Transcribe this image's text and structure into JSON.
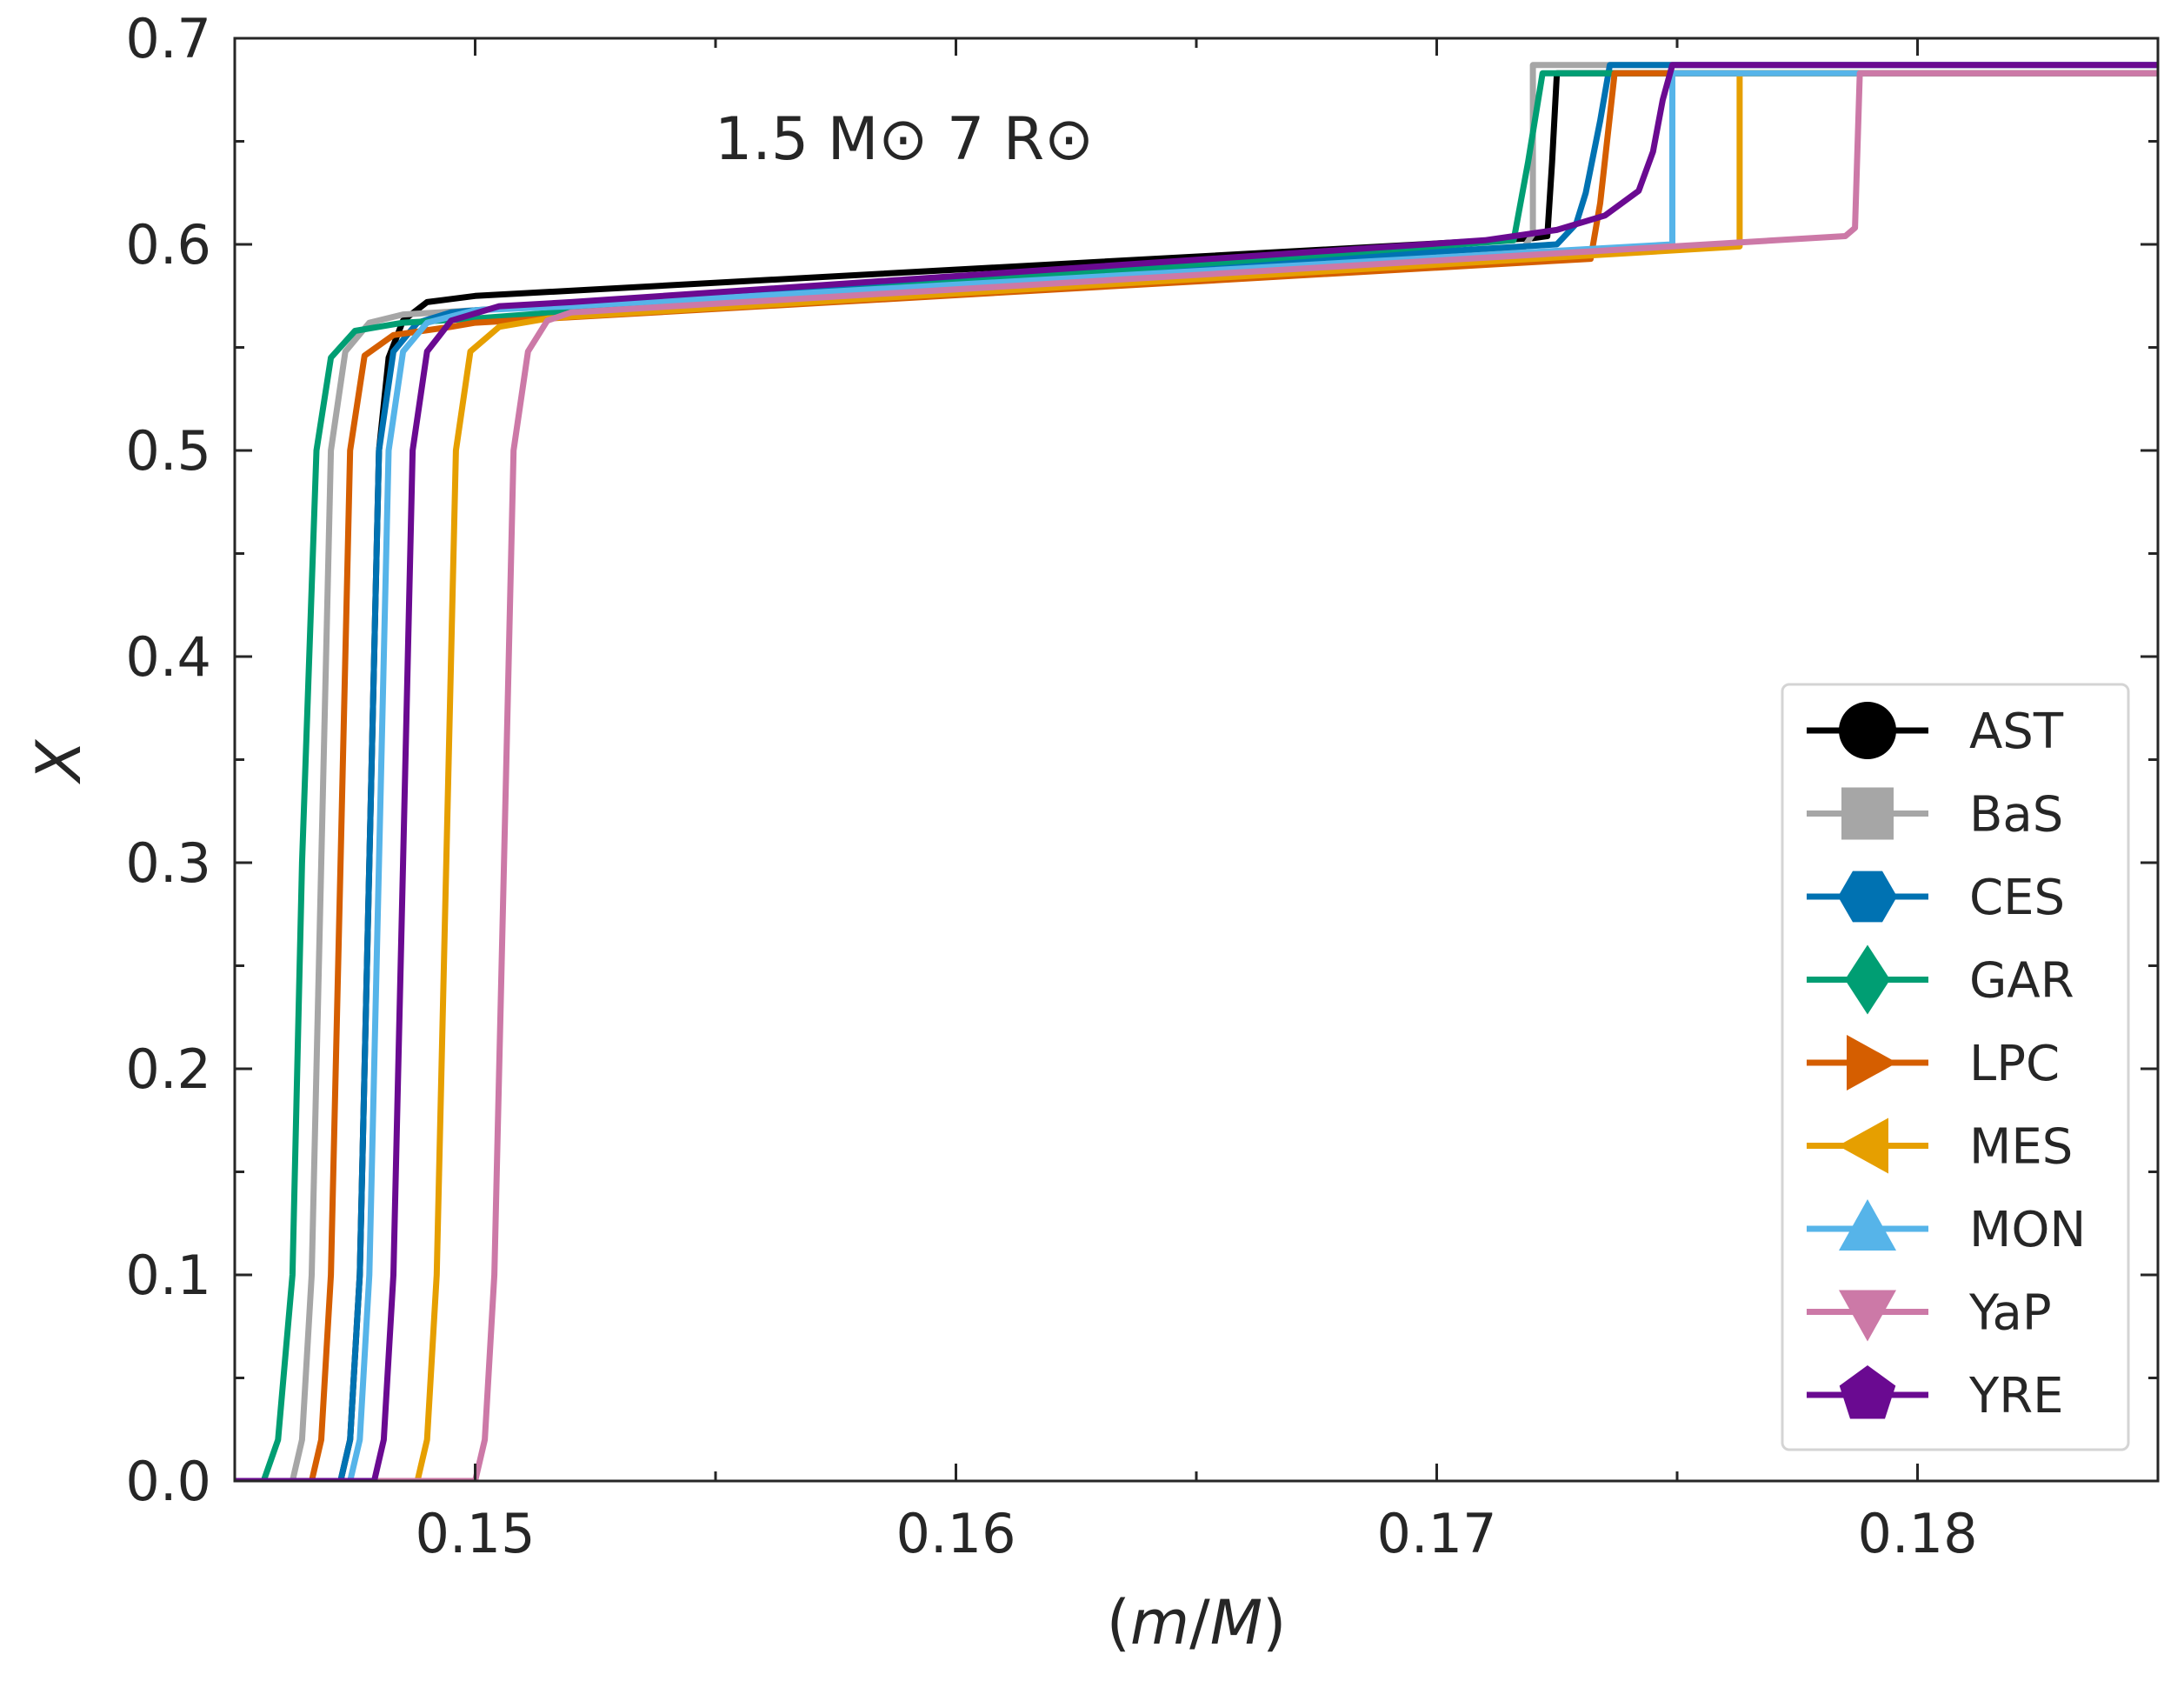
{
  "chart_data": {
    "type": "line",
    "annotation": "1.5 M⊙ 7 R⊙",
    "xlabel_parts": [
      "(",
      "m",
      "/",
      "M",
      ")"
    ],
    "ylabel": "X",
    "xlim": [
      0.145,
      0.185
    ],
    "ylim": [
      0.0,
      0.7
    ],
    "xticks": [
      0.15,
      0.16,
      0.17,
      0.18
    ],
    "xtick_labels": [
      "0.15",
      "0.16",
      "0.17",
      "0.18"
    ],
    "yticks": [
      0.0,
      0.1,
      0.2,
      0.3,
      0.4,
      0.5,
      0.6,
      0.7
    ],
    "ytick_labels": [
      "0.0",
      "0.1",
      "0.2",
      "0.3",
      "0.4",
      "0.5",
      "0.6",
      "0.7"
    ],
    "legend_location": "lower-right",
    "series": [
      {
        "name": "AST",
        "color": "#000000",
        "marker": "circle",
        "points": [
          [
            0.145,
            0.0
          ],
          [
            0.1472,
            0.0
          ],
          [
            0.1474,
            0.02
          ],
          [
            0.1476,
            0.1
          ],
          [
            0.1478,
            0.3
          ],
          [
            0.148,
            0.5
          ],
          [
            0.1482,
            0.545
          ],
          [
            0.1485,
            0.563
          ],
          [
            0.149,
            0.572
          ],
          [
            0.15,
            0.575
          ],
          [
            0.172,
            0.603
          ],
          [
            0.1723,
            0.604
          ],
          [
            0.1724,
            0.64
          ],
          [
            0.1725,
            0.683
          ],
          [
            0.185,
            0.683
          ]
        ]
      },
      {
        "name": "BaS",
        "color": "#a6a6a6",
        "marker": "square",
        "points": [
          [
            0.145,
            0.0
          ],
          [
            0.1462,
            0.0
          ],
          [
            0.1464,
            0.02
          ],
          [
            0.1466,
            0.1
          ],
          [
            0.1468,
            0.3
          ],
          [
            0.147,
            0.5
          ],
          [
            0.1473,
            0.548
          ],
          [
            0.1478,
            0.562
          ],
          [
            0.1485,
            0.566
          ],
          [
            0.15,
            0.568
          ],
          [
            0.1718,
            0.598
          ],
          [
            0.172,
            0.605
          ],
          [
            0.172,
            0.687
          ],
          [
            0.185,
            0.687
          ]
        ]
      },
      {
        "name": "CES",
        "color": "#0072b2",
        "marker": "hexagon",
        "points": [
          [
            0.145,
            0.0
          ],
          [
            0.1472,
            0.0
          ],
          [
            0.1474,
            0.02
          ],
          [
            0.1476,
            0.1
          ],
          [
            0.1478,
            0.3
          ],
          [
            0.148,
            0.5
          ],
          [
            0.1483,
            0.548
          ],
          [
            0.1488,
            0.562
          ],
          [
            0.1495,
            0.567
          ],
          [
            0.15,
            0.568
          ],
          [
            0.1725,
            0.6
          ],
          [
            0.1729,
            0.61
          ],
          [
            0.1731,
            0.625
          ],
          [
            0.1734,
            0.66
          ],
          [
            0.1736,
            0.687
          ],
          [
            0.185,
            0.687
          ]
        ]
      },
      {
        "name": "GAR",
        "color": "#009e73",
        "marker": "diamond",
        "points": [
          [
            0.145,
            0.0
          ],
          [
            0.1456,
            0.0
          ],
          [
            0.1459,
            0.02
          ],
          [
            0.1462,
            0.1
          ],
          [
            0.1464,
            0.3
          ],
          [
            0.1467,
            0.5
          ],
          [
            0.147,
            0.545
          ],
          [
            0.1475,
            0.558
          ],
          [
            0.1485,
            0.562
          ],
          [
            0.15,
            0.564
          ],
          [
            0.1716,
            0.602
          ],
          [
            0.1719,
            0.64
          ],
          [
            0.1722,
            0.683
          ],
          [
            0.185,
            0.683
          ]
        ]
      },
      {
        "name": "LPC",
        "color": "#d55e00",
        "marker": "triangle-right",
        "points": [
          [
            0.145,
            0.0
          ],
          [
            0.1466,
            0.0
          ],
          [
            0.1468,
            0.02
          ],
          [
            0.147,
            0.1
          ],
          [
            0.1472,
            0.3
          ],
          [
            0.1474,
            0.5
          ],
          [
            0.1477,
            0.546
          ],
          [
            0.1483,
            0.556
          ],
          [
            0.1495,
            0.56
          ],
          [
            0.15,
            0.562
          ],
          [
            0.1732,
            0.593
          ],
          [
            0.1734,
            0.62
          ],
          [
            0.1737,
            0.683
          ],
          [
            0.185,
            0.683
          ]
        ]
      },
      {
        "name": "MES",
        "color": "#e69f00",
        "marker": "triangle-left",
        "points": [
          [
            0.145,
            0.0
          ],
          [
            0.1488,
            0.0
          ],
          [
            0.149,
            0.02
          ],
          [
            0.1492,
            0.1
          ],
          [
            0.1494,
            0.3
          ],
          [
            0.1496,
            0.5
          ],
          [
            0.1499,
            0.548
          ],
          [
            0.1505,
            0.56
          ],
          [
            0.1515,
            0.564
          ],
          [
            0.152,
            0.565
          ],
          [
            0.1763,
            0.599
          ],
          [
            0.1763,
            0.683
          ],
          [
            0.185,
            0.683
          ]
        ]
      },
      {
        "name": "MON",
        "color": "#56b4e9",
        "marker": "triangle-up",
        "points": [
          [
            0.145,
            0.0
          ],
          [
            0.1474,
            0.0
          ],
          [
            0.1476,
            0.02
          ],
          [
            0.1478,
            0.1
          ],
          [
            0.148,
            0.3
          ],
          [
            0.1482,
            0.5
          ],
          [
            0.1485,
            0.548
          ],
          [
            0.149,
            0.562
          ],
          [
            0.15,
            0.568
          ],
          [
            0.152,
            0.57
          ],
          [
            0.1749,
            0.6
          ],
          [
            0.1749,
            0.683
          ],
          [
            0.185,
            0.683
          ]
        ]
      },
      {
        "name": "YaP",
        "color": "#cc79a7",
        "marker": "triangle-down",
        "points": [
          [
            0.145,
            0.0
          ],
          [
            0.15,
            0.0
          ],
          [
            0.1502,
            0.02
          ],
          [
            0.1504,
            0.1
          ],
          [
            0.1506,
            0.3
          ],
          [
            0.1508,
            0.5
          ],
          [
            0.1511,
            0.548
          ],
          [
            0.1515,
            0.563
          ],
          [
            0.152,
            0.567
          ],
          [
            0.1785,
            0.604
          ],
          [
            0.1787,
            0.608
          ],
          [
            0.1788,
            0.683
          ],
          [
            0.185,
            0.683
          ]
        ]
      },
      {
        "name": "YRE",
        "color": "#6a0a91",
        "marker": "pentagon",
        "points": [
          [
            0.145,
            0.0
          ],
          [
            0.1479,
            0.0
          ],
          [
            0.1481,
            0.02
          ],
          [
            0.1483,
            0.1
          ],
          [
            0.1485,
            0.3
          ],
          [
            0.1487,
            0.5
          ],
          [
            0.149,
            0.548
          ],
          [
            0.1495,
            0.563
          ],
          [
            0.1505,
            0.57
          ],
          [
            0.152,
            0.572
          ],
          [
            0.171,
            0.602
          ],
          [
            0.1725,
            0.607
          ],
          [
            0.1735,
            0.614
          ],
          [
            0.1742,
            0.626
          ],
          [
            0.1745,
            0.645
          ],
          [
            0.1747,
            0.67
          ],
          [
            0.1749,
            0.687
          ],
          [
            0.185,
            0.687
          ]
        ]
      }
    ]
  }
}
